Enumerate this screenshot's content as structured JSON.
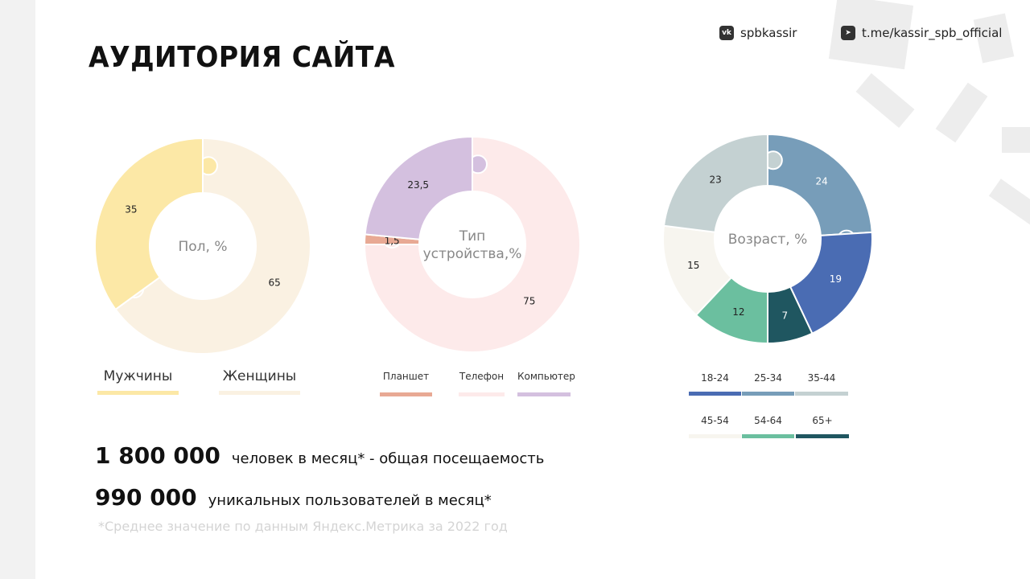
{
  "page": {
    "title": "АУДИТОРИЯ САЙТА",
    "social": [
      {
        "icon": "vk-icon",
        "handle": "spbkassir"
      },
      {
        "icon": "telegram-icon",
        "handle": "t.me/kassir_spb_official"
      }
    ]
  },
  "chart_data": [
    {
      "type": "pie",
      "title": "Пол, %",
      "categories": [
        "Мужчины",
        "Женщины"
      ],
      "values": [
        35,
        65
      ],
      "value_labels": [
        "35",
        "65"
      ],
      "colors": [
        "#fce8a6",
        "#faf1e2"
      ]
    },
    {
      "type": "pie",
      "title": "Тип устройства,%",
      "title_lines": [
        "Тип",
        "устройства,%"
      ],
      "categories": [
        "Телефон",
        "Планшет",
        "Компьютер"
      ],
      "legend_order": [
        "Планшет",
        "Телефон",
        "Компьютер"
      ],
      "values": [
        75,
        1.5,
        23.5
      ],
      "value_labels": [
        "75",
        "1,5",
        "23,5"
      ],
      "colors": [
        "#fdeaea",
        "#e8a994",
        "#d4c0df"
      ]
    },
    {
      "type": "pie",
      "title": "Возраст, %",
      "categories": [
        "18-24",
        "25-34",
        "35-44",
        "45-54",
        "54-64",
        "65+"
      ],
      "values": [
        19,
        24,
        23,
        15,
        12,
        7
      ],
      "value_labels": [
        "19",
        "24",
        "23",
        "15",
        "12",
        "7"
      ],
      "colors": [
        "#4a6cb3",
        "#779db9",
        "#c4d1d2",
        "#f7f5ef",
        "#6bbf9f",
        "#1f5660"
      ]
    }
  ],
  "stats": [
    {
      "number": "1 800 000",
      "text": "человек в месяц* - общая посещаемость"
    },
    {
      "number": "990 000",
      "text": "уникальных пользователей в месяц*"
    }
  ],
  "footnote": "*Среднее значение по данным Яндекс.Метрика за 2022 год"
}
